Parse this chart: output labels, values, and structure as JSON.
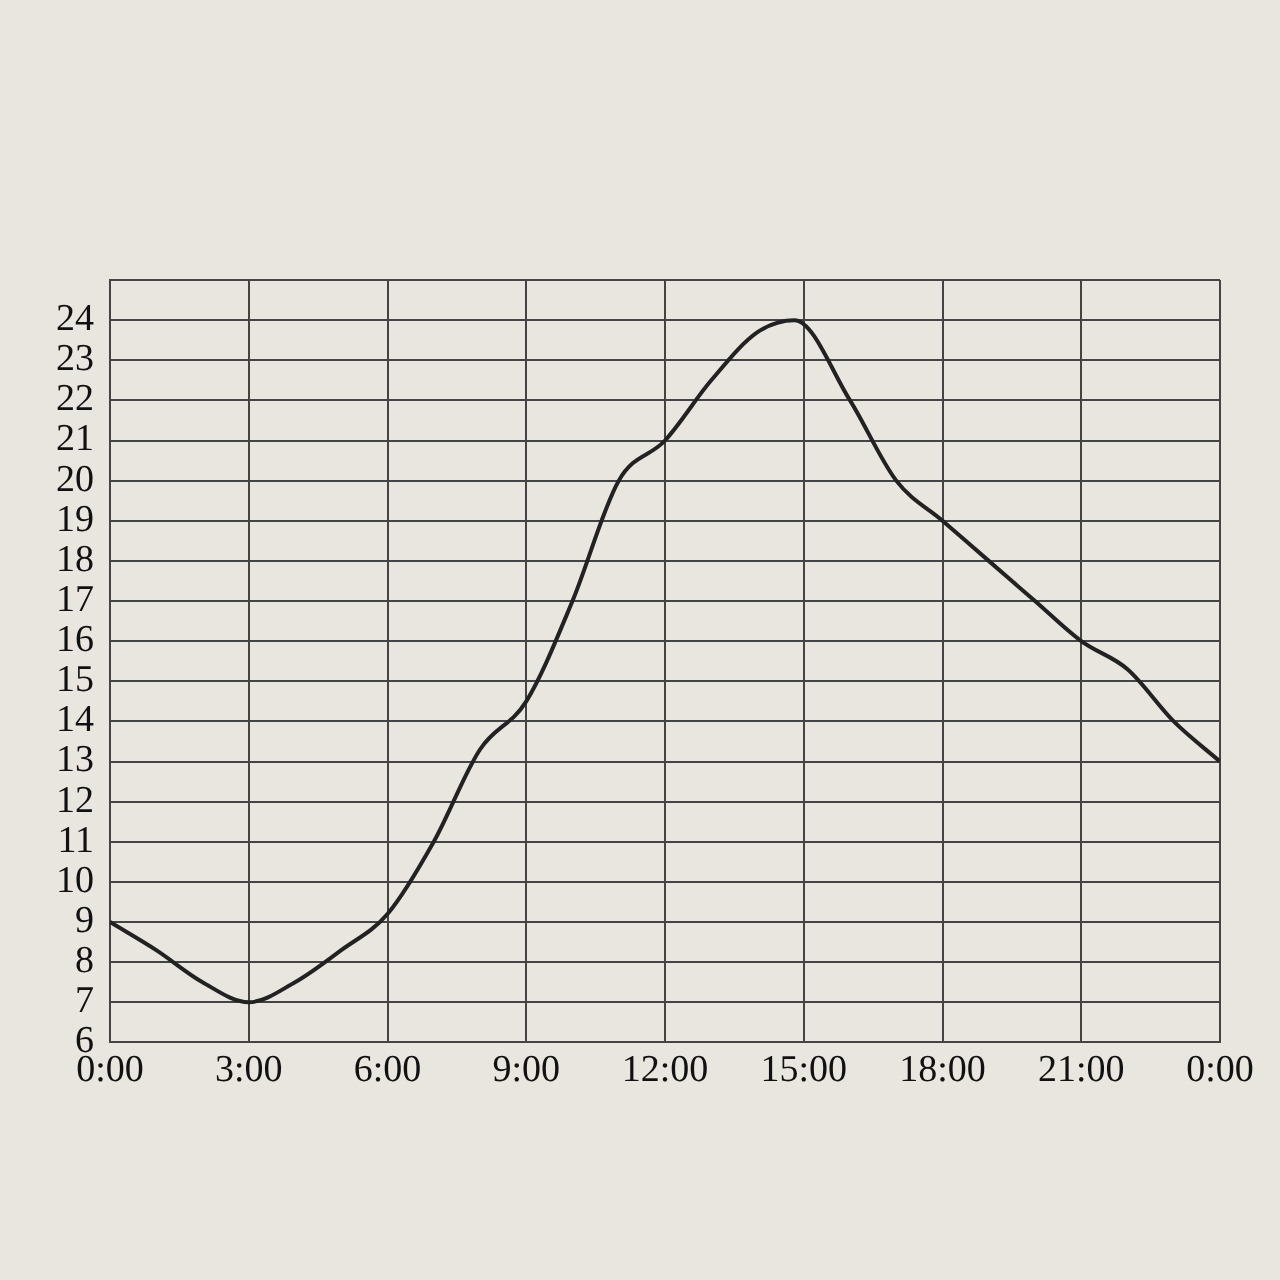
{
  "chart_data": {
    "type": "line",
    "grid": true,
    "legend": false,
    "marker": "none",
    "line_style": "solid",
    "x": [
      0,
      1,
      2,
      3,
      4,
      5,
      6,
      7,
      8,
      9,
      10,
      11,
      12,
      13,
      14,
      14.8,
      16,
      17,
      18,
      19,
      20,
      21,
      22,
      23,
      24
    ],
    "series": [
      {
        "color": "#222222",
        "values": [
          9,
          8.3,
          7.5,
          7,
          7.5,
          8.3,
          9.2,
          11,
          13.3,
          14.5,
          17,
          20,
          21,
          22.5,
          23.7,
          24,
          22,
          20,
          19,
          18,
          17,
          16,
          15.3,
          14,
          13
        ]
      }
    ],
    "xlim": [
      0,
      24
    ],
    "xticks": [
      {
        "value": 0,
        "label": "0:00"
      },
      {
        "value": 3,
        "label": "3:00"
      },
      {
        "value": 6,
        "label": "6:00"
      },
      {
        "value": 9,
        "label": "9:00"
      },
      {
        "value": 12,
        "label": "12:00"
      },
      {
        "value": 15,
        "label": "15:00"
      },
      {
        "value": 18,
        "label": "18:00"
      },
      {
        "value": 21,
        "label": "21:00"
      },
      {
        "value": 24,
        "label": "0:00"
      }
    ],
    "ylim": [
      6,
      25
    ],
    "yticks": [
      6,
      7,
      8,
      9,
      10,
      11,
      12,
      13,
      14,
      15,
      16,
      17,
      18,
      19,
      20,
      21,
      22,
      23,
      24,
      {
        "value": 25,
        "label": null
      }
    ]
  }
}
